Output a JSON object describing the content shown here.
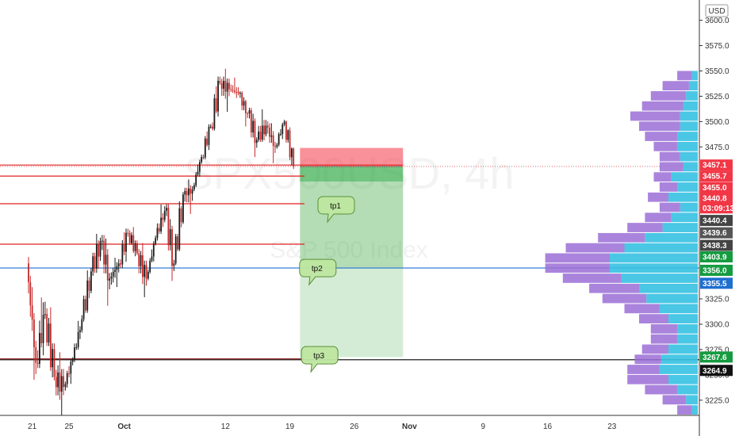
{
  "chart_data": {
    "type": "candlestick",
    "watermark": {
      "symbol": "SPX500USD, 4h",
      "name": "S&P 500 Index"
    },
    "currency": "USD",
    "y_axis": {
      "range": [
        3210,
        3620
      ],
      "ticks": [
        3225.0,
        3250.0,
        3275.0,
        3300.0,
        3325.0,
        3475.0,
        3500.0,
        3525.0,
        3550.0,
        3575.0,
        3600.0
      ],
      "tick_labels": [
        "3225.0",
        "3250.0",
        "3275.0",
        "3300.0",
        "3325.0",
        "3475.0",
        "3500.0",
        "3525.0",
        "3550.0",
        "3575.0",
        "3600.0"
      ]
    },
    "x_axis": {
      "labels": [
        "21",
        "25",
        "Oct",
        "12",
        "19",
        "26",
        "Nov",
        "9",
        "16",
        "23"
      ],
      "label_days": [
        0,
        4,
        10,
        21,
        28,
        35,
        41,
        49,
        56,
        63
      ],
      "range_days": [
        -3.5,
        72.5
      ]
    },
    "candles_daily": [
      {
        "d": 0,
        "o": 3360,
        "h": 3378,
        "l": 3230,
        "c": 3262
      },
      {
        "d": 1,
        "o": 3262,
        "h": 3345,
        "l": 3250,
        "c": 3310
      },
      {
        "d": 2,
        "o": 3310,
        "h": 3326,
        "l": 3238,
        "c": 3248
      },
      {
        "d": 3,
        "o": 3248,
        "h": 3268,
        "l": 3215,
        "c": 3238
      },
      {
        "d": 4,
        "o": 3238,
        "h": 3272,
        "l": 3228,
        "c": 3265
      },
      {
        "d": 5,
        "o": 3265,
        "h": 3316,
        "l": 3258,
        "c": 3305
      },
      {
        "d": 6,
        "o": 3305,
        "h": 3362,
        "l": 3298,
        "c": 3352
      },
      {
        "d": 7,
        "o": 3352,
        "h": 3392,
        "l": 3340,
        "c": 3382
      },
      {
        "d": 8,
        "o": 3382,
        "h": 3398,
        "l": 3320,
        "c": 3345
      },
      {
        "d": 9,
        "o": 3345,
        "h": 3372,
        "l": 3328,
        "c": 3360
      },
      {
        "d": 10,
        "o": 3360,
        "h": 3402,
        "l": 3350,
        "c": 3390
      },
      {
        "d": 11,
        "o": 3390,
        "h": 3398,
        "l": 3365,
        "c": 3370
      },
      {
        "d": 12,
        "o": 3370,
        "h": 3382,
        "l": 3325,
        "c": 3345
      },
      {
        "d": 13,
        "o": 3345,
        "h": 3392,
        "l": 3340,
        "c": 3385
      },
      {
        "d": 14,
        "o": 3385,
        "h": 3425,
        "l": 3378,
        "c": 3412
      },
      {
        "d": 15,
        "o": 3412,
        "h": 3422,
        "l": 3345,
        "c": 3360
      },
      {
        "d": 16,
        "o": 3360,
        "h": 3435,
        "l": 3355,
        "c": 3428
      },
      {
        "d": 17,
        "o": 3428,
        "h": 3442,
        "l": 3408,
        "c": 3433
      },
      {
        "d": 18,
        "o": 3433,
        "h": 3472,
        "l": 3428,
        "c": 3465
      },
      {
        "d": 19,
        "o": 3465,
        "h": 3502,
        "l": 3460,
        "c": 3495
      },
      {
        "d": 20,
        "o": 3495,
        "h": 3550,
        "l": 3490,
        "c": 3538
      },
      {
        "d": 21,
        "o": 3538,
        "h": 3550,
        "l": 3512,
        "c": 3532
      },
      {
        "d": 22,
        "o": 3532,
        "h": 3545,
        "l": 3522,
        "c": 3528
      },
      {
        "d": 23,
        "o": 3528,
        "h": 3532,
        "l": 3495,
        "c": 3508
      },
      {
        "d": 24,
        "o": 3508,
        "h": 3515,
        "l": 3468,
        "c": 3482
      },
      {
        "d": 25,
        "o": 3482,
        "h": 3512,
        "l": 3476,
        "c": 3496
      },
      {
        "d": 26,
        "o": 3496,
        "h": 3508,
        "l": 3458,
        "c": 3475
      },
      {
        "d": 27,
        "o": 3475,
        "h": 3505,
        "l": 3470,
        "c": 3500
      },
      {
        "d": 28,
        "o": 3500,
        "h": 3503,
        "l": 3448,
        "c": 3456
      }
    ],
    "horizontal_lines": [
      {
        "price": 3457.1,
        "color": "#e02020"
      },
      {
        "price": 3446.2,
        "color": "#e02020"
      },
      {
        "price": 3418.9,
        "color": "#e02020"
      },
      {
        "price": 3379.0,
        "color": "#e02020"
      },
      {
        "price": 3355.5,
        "color": "#1e6fd0"
      },
      {
        "price": 3264.9,
        "color": "#000000"
      },
      {
        "price": 3265.8,
        "color": "#8b1a1a"
      }
    ],
    "dotted_line": {
      "price": 3455.7,
      "color": "#e06060"
    },
    "position": {
      "entry": 3455.7,
      "stop": 3474.0,
      "targets": [
        3440.8,
        3356.0,
        3267.6
      ],
      "from_day": 29.1,
      "to_day": 40.3
    },
    "annotations": [
      {
        "text": "tp1",
        "price": 3426,
        "day": 31.4
      },
      {
        "text": "tp2",
        "price": 3364,
        "day": 29.4
      },
      {
        "text": "tp3",
        "price": 3278,
        "day": 29.6
      }
    ],
    "price_tags": [
      {
        "text": "3457.1",
        "price": 3457.1,
        "bg": "#f23645"
      },
      {
        "text": "3455.7",
        "price": 3446.2,
        "bg": "#f23645"
      },
      {
        "text": "3455.0",
        "price": 3434.9,
        "bg": "#f23645"
      },
      {
        "text": "3440.8",
        "price": 3424.2,
        "bg": "#f23645"
      },
      {
        "text": "03:09:13",
        "price": 3414.8,
        "bg": "#f23645"
      },
      {
        "text": "3440.4",
        "price": 3402.4,
        "bg": "#444444"
      },
      {
        "text": "3439.6",
        "price": 3390.2,
        "bg": "#555555"
      },
      {
        "text": "3438.3",
        "price": 3377.8,
        "bg": "#444444"
      },
      {
        "text": "3403.9",
        "price": 3366.5,
        "bg": "#159b40"
      },
      {
        "text": "3356.0",
        "price": 3353.2,
        "bg": "#159b40"
      },
      {
        "text": "3355.5",
        "price": 3340.4,
        "bg": "#1e6fd0"
      },
      {
        "text": "3267.6",
        "price": 3267.6,
        "bg": "#159b40"
      },
      {
        "text": "3264.9",
        "price": 3254.4,
        "bg": "#111111"
      }
    ],
    "volume_profile": {
      "prices": [
        3215,
        3225,
        3235,
        3245,
        3255,
        3265,
        3275,
        3285,
        3295,
        3305,
        3315,
        3325,
        3335,
        3345,
        3355,
        3365,
        3375,
        3385,
        3395,
        3405,
        3415,
        3425,
        3435,
        3445,
        3455,
        3465,
        3475,
        3485,
        3495,
        3505,
        3515,
        3525,
        3535,
        3545
      ],
      "volume_a": [
        4,
        8,
        14,
        20,
        26,
        25,
        20,
        14,
        14,
        20,
        26,
        35,
        40,
        52,
        60,
        60,
        50,
        36,
        24,
        18,
        12,
        20,
        14,
        18,
        10,
        12,
        14,
        14,
        12,
        12,
        10,
        8,
        6,
        4
      ],
      "volume_b": [
        10,
        16,
        22,
        28,
        22,
        18,
        18,
        18,
        18,
        20,
        24,
        30,
        34,
        40,
        44,
        44,
        40,
        32,
        24,
        18,
        14,
        14,
        12,
        12,
        16,
        14,
        16,
        22,
        28,
        34,
        28,
        24,
        18,
        10
      ]
    }
  }
}
